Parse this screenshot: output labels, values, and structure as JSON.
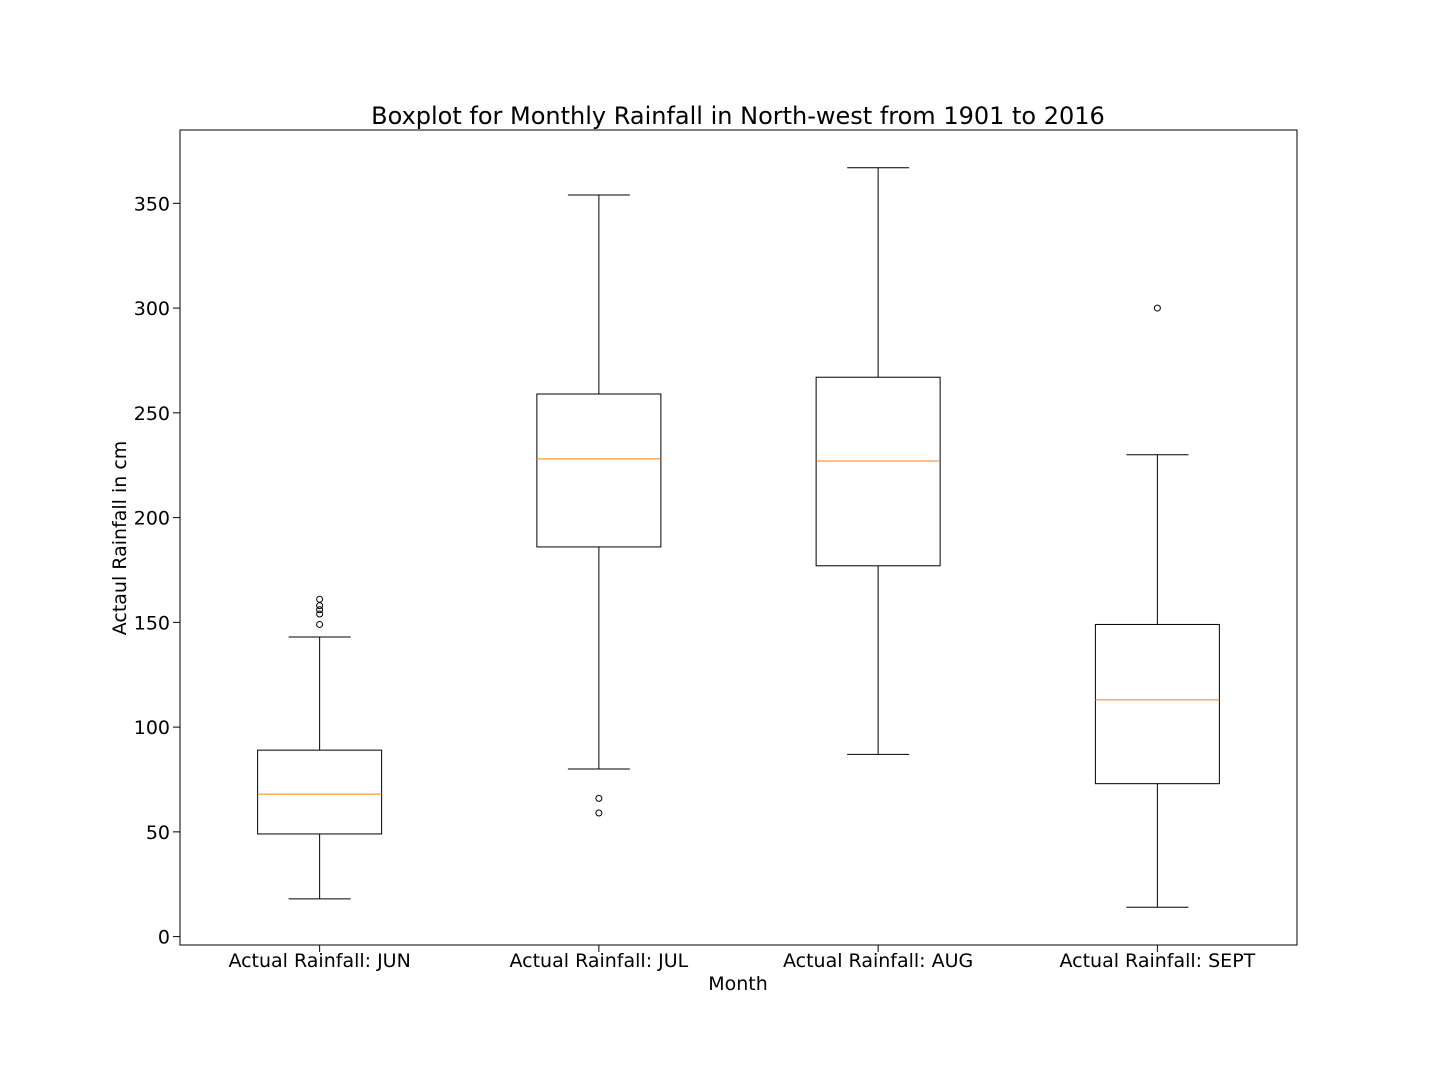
{
  "chart_data": {
    "type": "boxplot",
    "title": "Boxplot for Monthly Rainfall in North-west from 1901 to 2016",
    "xlabel": "Month",
    "ylabel": "Actaul Rainfall in cm",
    "ylim": [
      -4,
      385
    ],
    "yticks": [
      0,
      50,
      100,
      150,
      200,
      250,
      300,
      350
    ],
    "grid": false,
    "colors": {
      "box": "#000000",
      "median": "#ff7f0e",
      "frame": "#000000"
    },
    "categories": [
      "Actual Rainfall: JUN",
      "Actual Rainfall: JUL",
      "Actual Rainfall: AUG",
      "Actual Rainfall: SEPT"
    ],
    "boxes": [
      {
        "label": "Actual Rainfall: JUN",
        "whislo": 18,
        "q1": 49,
        "med": 68,
        "q3": 89,
        "whishi": 143,
        "fliers": [
          149,
          154,
          156,
          158,
          161
        ]
      },
      {
        "label": "Actual Rainfall: JUL",
        "whislo": 80,
        "q1": 186,
        "med": 228,
        "q3": 259,
        "whishi": 354,
        "fliers": [
          59,
          66
        ]
      },
      {
        "label": "Actual Rainfall: AUG",
        "whislo": 87,
        "q1": 177,
        "med": 227,
        "q3": 267,
        "whishi": 367,
        "fliers": []
      },
      {
        "label": "Actual Rainfall: SEPT",
        "whislo": 14,
        "q1": 73,
        "med": 113,
        "q3": 149,
        "whishi": 230,
        "fliers": [
          300
        ]
      }
    ]
  }
}
